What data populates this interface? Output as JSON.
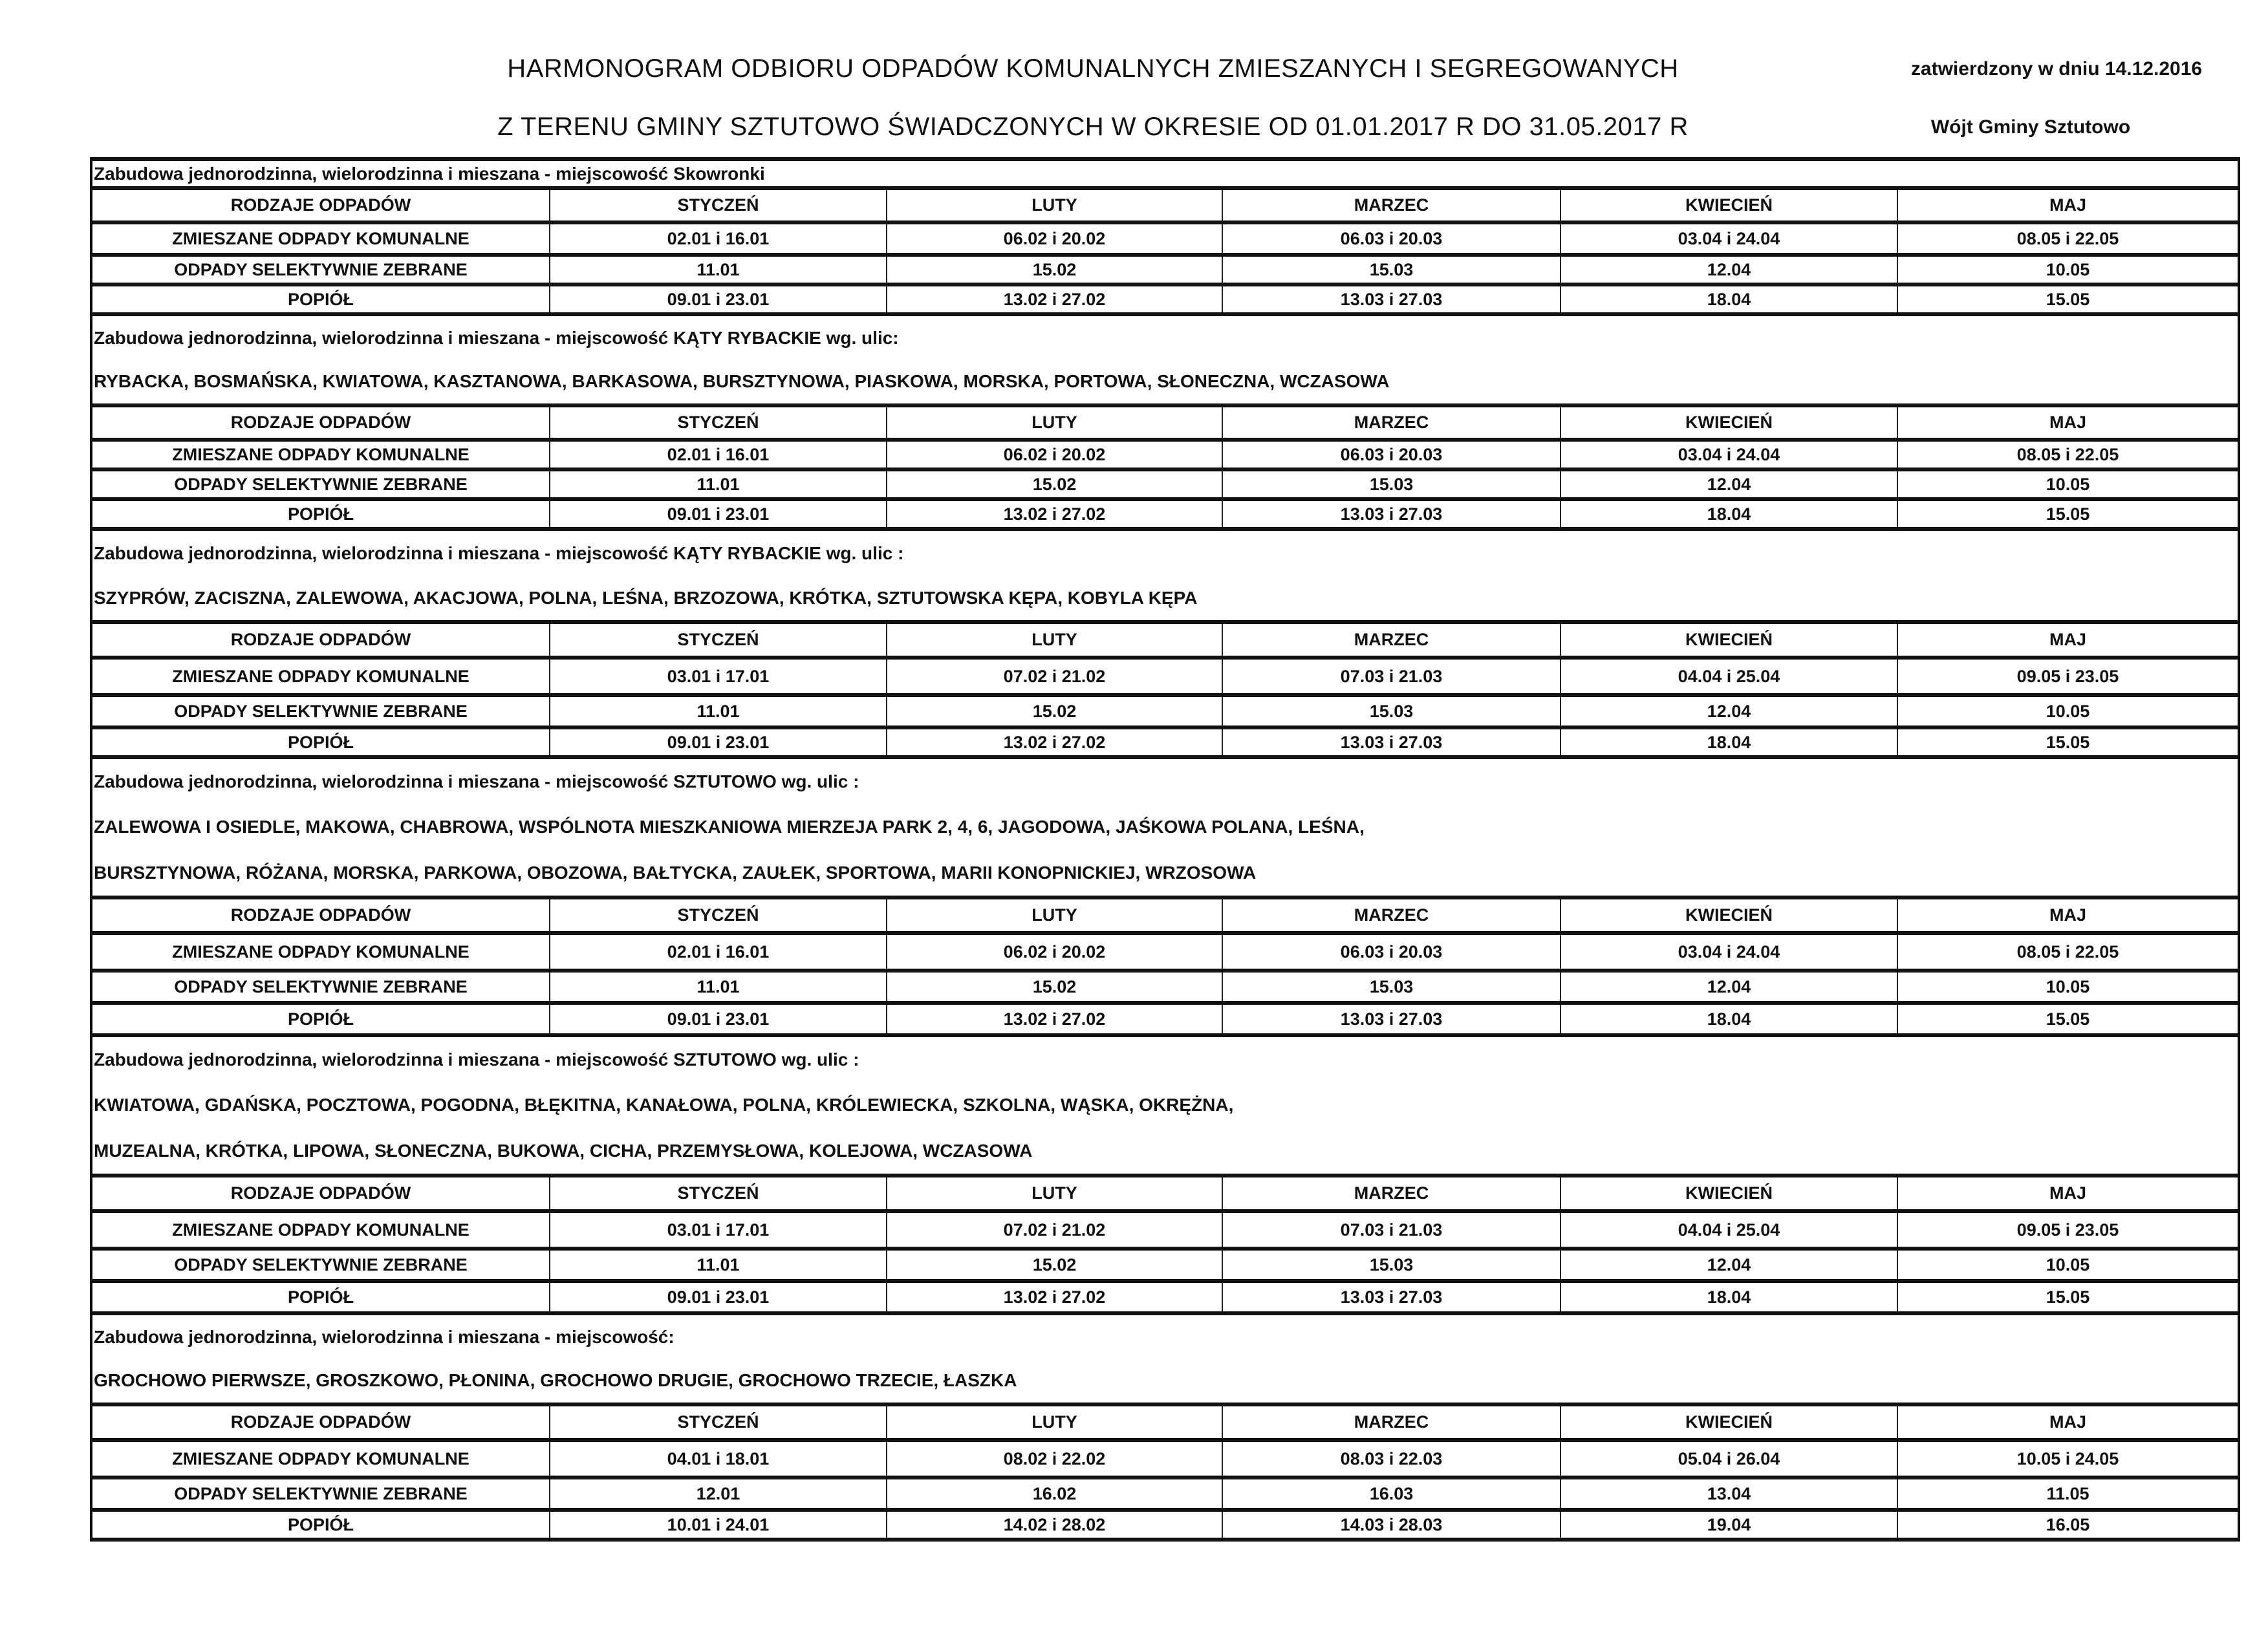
{
  "header": {
    "title_line1": "HARMONOGRAM ODBIORU ODPADÓW KOMUNALNYCH ZMIESZANYCH I SEGREGOWANYCH",
    "title_line2": "Z TERENU GMINY SZTUTOWO ŚWIADCZONYCH W OKRESIE OD 01.01.2017 R DO 31.05.2017 R",
    "approved": "zatwierdzony w dniu 14.12.2016",
    "signatory": "Wójt Gminy Sztutowo"
  },
  "columns": [
    "RODZAJE ODPADÓW",
    "STYCZEŃ",
    "LUTY",
    "MARZEC",
    "KWIECIEŃ",
    "MAJ"
  ],
  "row_labels": [
    "ZMIESZANE ODPADY KOMUNALNE",
    "ODPADY SELEKTYWNIE ZEBRANE",
    "POPIÓŁ"
  ],
  "sections": [
    {
      "caption": [
        "Zabudowa jednorodzinna, wielorodzinna i mieszana - miejscowość  Skowronki"
      ],
      "rows": [
        [
          "02.01  i 16.01",
          "06.02  i  20.02",
          "06.03  i  20.03",
          "03.04  i  24.04",
          "08.05  i  22.05"
        ],
        [
          "11.01",
          "15.02",
          "15.03",
          "12.04",
          "10.05"
        ],
        [
          "09.01  i  23.01",
          "13.02  i  27.02",
          "13.03  i  27.03",
          "18.04",
          "15.05"
        ]
      ]
    },
    {
      "caption": [
        "Zabudowa jednorodzinna, wielorodzinna i mieszana - miejscowość  KĄTY RYBACKIE  wg. ulic:",
        "RYBACKA, BOSMAŃSKA, KWIATOWA, KASZTANOWA, BARKASOWA, BURSZTYNOWA, PIASKOWA, MORSKA, PORTOWA, SŁONECZNA, WCZASOWA"
      ],
      "rows": [
        [
          "02.01  i 16.01",
          "06.02  i  20.02",
          "06.03  i  20.03",
          "03.04  i  24.04",
          "08.05  i  22.05"
        ],
        [
          "11.01",
          "15.02",
          "15.03",
          "12.04",
          "10.05"
        ],
        [
          "09.01  i  23.01",
          "13.02  i  27.02",
          "13.03  i  27.03",
          "18.04",
          "15.05"
        ]
      ]
    },
    {
      "caption": [
        "Zabudowa jednorodzinna, wielorodzinna i mieszana - miejscowość  KĄTY RYBACKIE  wg. ulic :",
        "SZYPRÓW, ZACISZNA, ZALEWOWA, AKACJOWA, POLNA, LEŚNA, BRZOZOWA, KRÓTKA, SZTUTOWSKA KĘPA, KOBYLA KĘPA"
      ],
      "rows": [
        [
          "03.01  i  17.01",
          "07.02  i  21.02",
          "07.03  i  21.03",
          "04.04  i  25.04",
          "09.05  i  23.05"
        ],
        [
          "11.01",
          "15.02",
          "15.03",
          "12.04",
          "10.05"
        ],
        [
          "09.01  i  23.01",
          "13.02  i  27.02",
          "13.03  i 27.03",
          "18.04",
          "15.05"
        ]
      ]
    },
    {
      "caption": [
        "Zabudowa jednorodzinna, wielorodzinna i mieszana - miejscowość  SZTUTOWO  wg. ulic :",
        "ZALEWOWA I OSIEDLE, MAKOWA, CHABROWA, WSPÓLNOTA MIESZKANIOWA MIERZEJA PARK 2, 4, 6, JAGODOWA, JAŚKOWA POLANA, LEŚNA,",
        "BURSZTYNOWA, RÓŻANA, MORSKA, PARKOWA, OBOZOWA, BAŁTYCKA, ZAUŁEK, SPORTOWA, MARII KONOPNICKIEJ, WRZOSOWA"
      ],
      "rows": [
        [
          "02.01  i  16.01",
          "06.02  i  20.02",
          "06.03  i  20.03",
          "03.04  i  24.04",
          "08.05  i  22.05"
        ],
        [
          "11.01",
          "15.02",
          "15.03",
          "12.04",
          "10.05"
        ],
        [
          "09.01  i  23.01",
          "13.02  i  27.02",
          "13.03  i 27.03",
          "18.04",
          "15.05"
        ]
      ]
    },
    {
      "caption": [
        "Zabudowa jednorodzinna, wielorodzinna i mieszana - miejscowość  SZTUTOWO  wg. ulic :",
        "KWIATOWA, GDAŃSKA, POCZTOWA, POGODNA, BŁĘKITNA, KANAŁOWA, POLNA, KRÓLEWIECKA, SZKOLNA, WĄSKA, OKRĘŻNA,",
        "MUZEALNA, KRÓTKA, LIPOWA, SŁONECZNA, BUKOWA, CICHA, PRZEMYSŁOWA, KOLEJOWA, WCZASOWA"
      ],
      "rows": [
        [
          "03.01  i  17.01",
          "07.02  i  21.02",
          "07.03  i 21.03",
          "04.04  i  25.04",
          "09.05  i  23.05"
        ],
        [
          "11.01",
          "15.02",
          "15.03",
          "12.04",
          "10.05"
        ],
        [
          "09.01  i  23.01",
          "13.02  i  27.02",
          "13.03  i 27.03",
          "18.04",
          "15.05"
        ]
      ]
    },
    {
      "caption": [
        "Zabudowa jednorodzinna, wielorodzinna i mieszana - miejscowość:",
        "GROCHOWO PIERWSZE, GROSZKOWO, PŁONINA, GROCHOWO DRUGIE, GROCHOWO TRZECIE, ŁASZKA"
      ],
      "rows": [
        [
          "04.01  i  18.01",
          "08.02  i  22.02",
          "08.03  i  22.03",
          "05.04  i  26.04",
          "10.05  i  24.05"
        ],
        [
          "12.01",
          "16.02",
          "16.03",
          "13.04",
          "11.05"
        ],
        [
          "10.01  i  24.01",
          "14.02  i  28.02",
          "14.03  i 28.03",
          "19.04",
          "16.05"
        ]
      ]
    }
  ]
}
